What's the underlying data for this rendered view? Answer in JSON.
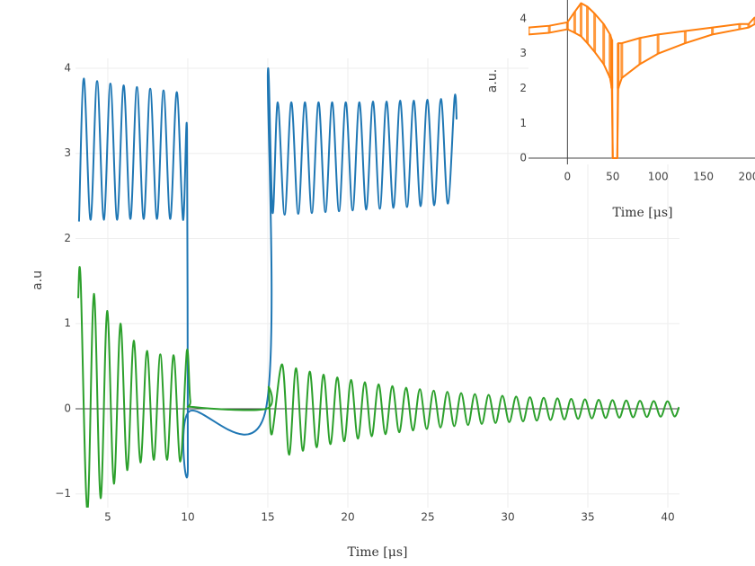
{
  "chart_data": [
    {
      "type": "line",
      "x_label": "Time [μs]",
      "y_label": "a.u",
      "xlim": [
        2.98,
        40.73
      ],
      "ylim": [
        -1.161,
        4.116
      ],
      "xticks": [
        5,
        10,
        15,
        20,
        25,
        30,
        35,
        40
      ],
      "yticks": [
        {
          "value": -1,
          "label": "−1"
        },
        0,
        1,
        2,
        3,
        4
      ],
      "grid": true,
      "smooth": true,
      "series": [
        {
          "color": "#1f77b4",
          "x": [
            3.2,
            3.5,
            3.92,
            4.33,
            4.75,
            5.16,
            5.58,
            5.99,
            6.41,
            6.82,
            7.24,
            7.65,
            8.07,
            8.48,
            8.9,
            9.31,
            9.7,
            9.95,
            10.0,
            10.1,
            14.85,
            15.0,
            15.3,
            15.62,
            16.05,
            16.47,
            16.9,
            17.32,
            17.75,
            18.17,
            18.6,
            19.02,
            19.45,
            19.87,
            20.3,
            20.72,
            21.15,
            21.57,
            22.0,
            22.42,
            22.85,
            23.27,
            23.7,
            24.12,
            24.55,
            24.97,
            25.4,
            25.82,
            26.25,
            26.67,
            26.8
          ],
          "values": [
            2.2,
            3.88,
            2.22,
            3.85,
            2.22,
            3.82,
            2.22,
            3.8,
            2.23,
            3.78,
            2.23,
            3.76,
            2.23,
            3.74,
            2.23,
            3.72,
            2.22,
            3.27,
            -0.65,
            -0.03,
            -0.03,
            3.95,
            2.3,
            3.6,
            2.28,
            3.6,
            2.29,
            3.6,
            2.3,
            3.6,
            2.31,
            3.6,
            2.32,
            3.6,
            2.33,
            3.6,
            2.34,
            3.61,
            2.35,
            3.61,
            2.36,
            3.62,
            2.37,
            3.62,
            2.38,
            3.63,
            2.39,
            3.64,
            2.41,
            3.65,
            3.4
          ]
        },
        {
          "color": "#2ca02c",
          "x": [
            3.15,
            3.3,
            3.72,
            4.13,
            4.55,
            4.96,
            5.38,
            5.79,
            6.21,
            6.62,
            7.04,
            7.45,
            7.87,
            8.28,
            8.7,
            9.11,
            9.53,
            9.94,
            10.15,
            10.4,
            14.9,
            15.05,
            15.25,
            15.9,
            16.33,
            16.76,
            17.19,
            17.62,
            18.05,
            18.48,
            18.91,
            19.34,
            19.77,
            20.2,
            20.63,
            21.06,
            21.49,
            21.92,
            22.35,
            22.78,
            23.21,
            23.64,
            24.07,
            24.5,
            24.93,
            25.36,
            25.79,
            26.22,
            26.65,
            27.08,
            27.51,
            27.94,
            28.37,
            28.8,
            29.23,
            29.66,
            30.09,
            30.52,
            30.95,
            31.38,
            31.81,
            32.24,
            32.67,
            33.1,
            33.53,
            33.96,
            34.39,
            34.82,
            35.25,
            35.68,
            36.11,
            36.54,
            36.97,
            37.4,
            37.83,
            38.26,
            38.69,
            39.12,
            39.55,
            39.98,
            40.41,
            40.7
          ],
          "values": [
            1.3,
            1.52,
            -1.2,
            1.35,
            -1.05,
            1.15,
            -0.88,
            1.0,
            -0.72,
            0.8,
            -0.63,
            0.68,
            -0.6,
            0.64,
            -0.6,
            0.63,
            -0.62,
            0.68,
            0.1,
            0.02,
            0.0,
            0.25,
            -0.3,
            0.52,
            -0.54,
            0.476,
            -0.494,
            0.437,
            -0.453,
            0.401,
            -0.416,
            0.368,
            -0.382,
            0.339,
            -0.351,
            0.312,
            -0.323,
            0.288,
            -0.298,
            0.267,
            -0.276,
            0.247,
            -0.255,
            0.229,
            -0.237,
            0.213,
            -0.22,
            0.199,
            -0.205,
            0.185,
            -0.191,
            0.173,
            -0.178,
            0.163,
            -0.167,
            0.153,
            -0.157,
            0.144,
            -0.148,
            0.136,
            -0.139,
            0.129,
            -0.132,
            0.122,
            -0.125,
            0.116,
            -0.119,
            0.111,
            -0.113,
            0.106,
            -0.108,
            0.102,
            -0.104,
            0.098,
            -0.1,
            0.094,
            -0.096,
            0.091,
            -0.093,
            0.088,
            -0.09,
            0.02
          ]
        }
      ]
    },
    {
      "type": "line",
      "x_label": "Time [μs]",
      "y_label": "a.u.",
      "xlim": [
        -43,
        207
      ],
      "ylim": [
        -0.18,
        4.54
      ],
      "xticks": [
        0,
        50,
        100,
        150,
        200
      ],
      "yticks": [
        0,
        1,
        2,
        3,
        4
      ],
      "grid": false,
      "smooth": false,
      "range_bars": true,
      "series": [
        {
          "color": "#ff7f0e",
          "x": [
            -43,
            -20,
            0,
            8,
            15,
            22,
            30,
            40,
            47,
            49,
            50,
            55,
            56,
            60,
            80,
            100,
            130,
            160,
            190,
            200,
            207
          ],
          "values": [
            3.75,
            3.8,
            3.9,
            4.2,
            4.45,
            4.35,
            4.15,
            3.85,
            3.55,
            3.4,
            0,
            0,
            3.3,
            3.3,
            3.45,
            3.55,
            3.65,
            3.75,
            3.85,
            3.85,
            4.05
          ]
        },
        {
          "color": "#ff7f0e",
          "x": [
            -43,
            -20,
            0,
            8,
            15,
            22,
            30,
            40,
            47,
            49,
            50,
            55,
            56,
            60,
            80,
            100,
            130,
            160,
            190,
            200,
            207
          ],
          "values": [
            3.55,
            3.6,
            3.7,
            3.6,
            3.5,
            3.3,
            3.05,
            2.7,
            2.3,
            2.0,
            0,
            0,
            2.0,
            2.3,
            2.7,
            3.0,
            3.3,
            3.55,
            3.7,
            3.75,
            3.85
          ]
        }
      ]
    }
  ]
}
